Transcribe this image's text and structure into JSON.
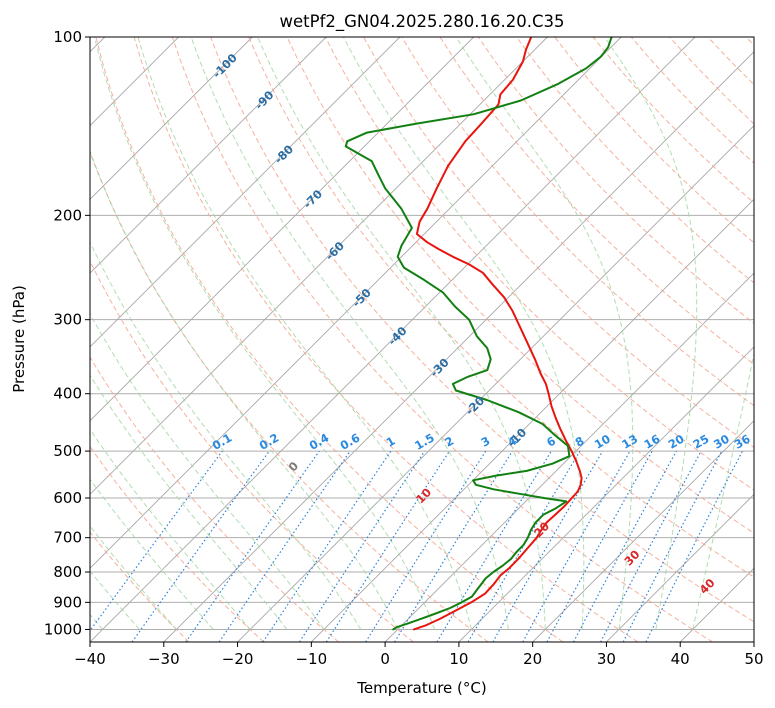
{
  "chart_data": {
    "type": "skew-t",
    "title": "wetPf2_GN04.2025.280.16.20.C35",
    "xlabel": "Temperature (°C)",
    "ylabel": "Pressure (hPa)",
    "xlim": [
      -40,
      50
    ],
    "ylim": [
      1050,
      100
    ],
    "x_ticks": [
      {
        "value": -40,
        "label": "−40"
      },
      {
        "value": -30,
        "label": "−30"
      },
      {
        "value": -20,
        "label": "−20"
      },
      {
        "value": -10,
        "label": "−10"
      },
      {
        "value": 0,
        "label": "0"
      },
      {
        "value": 10,
        "label": "10"
      },
      {
        "value": 20,
        "label": "20"
      },
      {
        "value": 30,
        "label": "30"
      },
      {
        "value": 40,
        "label": "40"
      },
      {
        "value": 50,
        "label": "50"
      }
    ],
    "y_ticks": [
      {
        "value": 100,
        "label": "100"
      },
      {
        "value": 200,
        "label": "200"
      },
      {
        "value": 300,
        "label": "300"
      },
      {
        "value": 400,
        "label": "400"
      },
      {
        "value": 500,
        "label": "500"
      },
      {
        "value": 600,
        "label": "600"
      },
      {
        "value": 700,
        "label": "700"
      },
      {
        "value": 800,
        "label": "800"
      },
      {
        "value": 900,
        "label": "900"
      },
      {
        "value": 1000,
        "label": "1000"
      }
    ],
    "isotherm_labels": [
      {
        "label": "-100",
        "p": 112
      },
      {
        "label": "-90",
        "p": 128
      },
      {
        "label": "-80",
        "p": 158
      },
      {
        "label": "-70",
        "p": 188
      },
      {
        "label": "-60",
        "p": 230
      },
      {
        "label": "-50",
        "p": 276
      },
      {
        "label": "-40",
        "p": 320
      },
      {
        "label": "-30",
        "p": 362
      },
      {
        "label": "-20",
        "p": 420
      },
      {
        "label": "-10",
        "p": 475
      }
    ],
    "mixing_ratio_labels": [
      "0.1",
      "0.2",
      "0.4",
      "0.6",
      "1",
      "1.5",
      "2",
      "3",
      "4",
      "6",
      "8",
      "10",
      "13",
      "16",
      "20",
      "25",
      "30",
      "36"
    ],
    "mixing_ratio_values": [
      0.1,
      0.2,
      0.4,
      0.6,
      1,
      1.5,
      2,
      3,
      4,
      6,
      8,
      10,
      13,
      16,
      20,
      25,
      30,
      36
    ],
    "wet_bulb_labels": [
      {
        "label": "0",
        "t": 0
      },
      {
        "label": "10",
        "t": 10
      },
      {
        "label": "20",
        "t": 20
      },
      {
        "label": "30",
        "t": 30
      },
      {
        "label": "40",
        "t": 40
      }
    ],
    "series": [
      {
        "name": "Temperature",
        "color": "#e8150f",
        "points": [
          [
            1000,
            2.2
          ],
          [
            985,
            3.2
          ],
          [
            960,
            4.3
          ],
          [
            930,
            5.3
          ],
          [
            900,
            6.3
          ],
          [
            870,
            7.0
          ],
          [
            840,
            6.9
          ],
          [
            810,
            6.6
          ],
          [
            790,
            6.8
          ],
          [
            760,
            6.8
          ],
          [
            730,
            6.6
          ],
          [
            700,
            6.4
          ],
          [
            680,
            6.0
          ],
          [
            660,
            5.7
          ],
          [
            640,
            5.8
          ],
          [
            620,
            5.9
          ],
          [
            600,
            5.8
          ],
          [
            585,
            5.7
          ],
          [
            570,
            5.2
          ],
          [
            555,
            4.4
          ],
          [
            540,
            3.2
          ],
          [
            520,
            1.4
          ],
          [
            500,
            -0.6
          ],
          [
            480,
            -2.8
          ],
          [
            460,
            -5.0
          ],
          [
            440,
            -7.2
          ],
          [
            420,
            -9.4
          ],
          [
            400,
            -11.5
          ],
          [
            385,
            -13.2
          ],
          [
            370,
            -15.3
          ],
          [
            350,
            -18.0
          ],
          [
            330,
            -21.0
          ],
          [
            310,
            -24.2
          ],
          [
            290,
            -27.6
          ],
          [
            275,
            -30.6
          ],
          [
            262,
            -33.8
          ],
          [
            250,
            -36.8
          ],
          [
            242,
            -39.8
          ],
          [
            235,
            -43.0
          ],
          [
            228,
            -46.0
          ],
          [
            222,
            -48.5
          ],
          [
            215,
            -51.0
          ],
          [
            205,
            -52.3
          ],
          [
            195,
            -53.0
          ],
          [
            180,
            -54.5
          ],
          [
            165,
            -56.0
          ],
          [
            150,
            -57.0
          ],
          [
            140,
            -57.2
          ],
          [
            130,
            -57.5
          ],
          [
            125,
            -58.6
          ],
          [
            118,
            -58.9
          ],
          [
            110,
            -60.0
          ],
          [
            105,
            -61.2
          ],
          [
            100,
            -62.2
          ]
        ]
      },
      {
        "name": "Dew point",
        "color": "#118011",
        "points": [
          [
            1000,
            -0.6
          ],
          [
            990,
            -0.4
          ],
          [
            980,
            0.4
          ],
          [
            960,
            1.7
          ],
          [
            940,
            3.0
          ],
          [
            920,
            4.2
          ],
          [
            900,
            5.0
          ],
          [
            880,
            5.6
          ],
          [
            860,
            5.4
          ],
          [
            840,
            5.2
          ],
          [
            820,
            5.0
          ],
          [
            800,
            5.2
          ],
          [
            780,
            5.6
          ],
          [
            760,
            5.8
          ],
          [
            740,
            5.6
          ],
          [
            720,
            5.6
          ],
          [
            700,
            5.2
          ],
          [
            680,
            4.6
          ],
          [
            660,
            4.2
          ],
          [
            640,
            4.2
          ],
          [
            625,
            5.0
          ],
          [
            608,
            5.5
          ],
          [
            600,
            2.0
          ],
          [
            590,
            -2.0
          ],
          [
            580,
            -6.0
          ],
          [
            570,
            -9.0
          ],
          [
            560,
            -10.0
          ],
          [
            550,
            -7.5
          ],
          [
            540,
            -4.0
          ],
          [
            525,
            -1.5
          ],
          [
            510,
            -0.2
          ],
          [
            490,
            -1.8
          ],
          [
            470,
            -5.0
          ],
          [
            450,
            -8.2
          ],
          [
            430,
            -13.0
          ],
          [
            410,
            -19.0
          ],
          [
            395,
            -24.5
          ],
          [
            385,
            -25.8
          ],
          [
            375,
            -24.8
          ],
          [
            365,
            -23.0
          ],
          [
            350,
            -24.0
          ],
          [
            335,
            -26.0
          ],
          [
            320,
            -29.0
          ],
          [
            300,
            -32.3
          ],
          [
            285,
            -36.0
          ],
          [
            270,
            -39.5
          ],
          [
            257,
            -43.8
          ],
          [
            245,
            -48.2
          ],
          [
            235,
            -50.5
          ],
          [
            225,
            -51.5
          ],
          [
            210,
            -52.5
          ],
          [
            195,
            -56.5
          ],
          [
            180,
            -61.5
          ],
          [
            170,
            -64.5
          ],
          [
            162,
            -67.0
          ],
          [
            157,
            -70.0
          ],
          [
            153,
            -72.5
          ],
          [
            150,
            -73.0
          ],
          [
            145,
            -71.5
          ],
          [
            140,
            -66.0
          ],
          [
            135,
            -59.5
          ],
          [
            128,
            -55.0
          ],
          [
            120,
            -52.2
          ],
          [
            113,
            -50.5
          ],
          [
            108,
            -50.1
          ],
          [
            104,
            -50.4
          ],
          [
            100,
            -51.3
          ]
        ]
      }
    ]
  }
}
